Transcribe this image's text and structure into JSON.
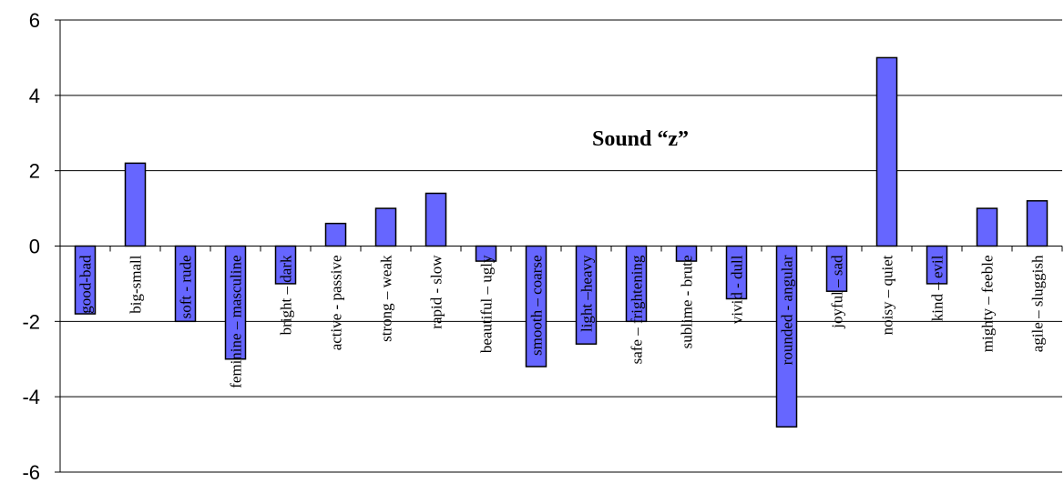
{
  "chart_data": {
    "type": "bar",
    "title": "Sound “z”",
    "xlabel": "",
    "ylabel": "",
    "ylim": [
      -6,
      6
    ],
    "yticks": [
      6,
      4,
      2,
      0,
      -2,
      -4,
      -6
    ],
    "grid": true,
    "categories": [
      "good-bad",
      "big-small",
      "soft - rude",
      "feminine – masculine",
      "bright – dark",
      "active - passive",
      "strong – weak",
      "rapid - slow",
      "beautiful – ugly",
      "smooth – coarse",
      "light –heavy",
      "safe – frightening",
      "sublime - brute",
      "vivid - dull",
      "rounded - angular",
      "joyful – sad",
      "noisy – quiet",
      "kind – evil",
      "mighty – feeble",
      "agile – sluggish"
    ],
    "values": [
      -1.8,
      2.2,
      -2.0,
      -3.0,
      -1.0,
      0.6,
      1.0,
      1.4,
      -0.4,
      -3.2,
      -2.6,
      -2.0,
      -0.4,
      -1.4,
      -4.8,
      -1.2,
      5.0,
      -1.0,
      1.0,
      1.2
    ],
    "bar_color": "#6666ff",
    "bar_stroke": "#000000"
  }
}
